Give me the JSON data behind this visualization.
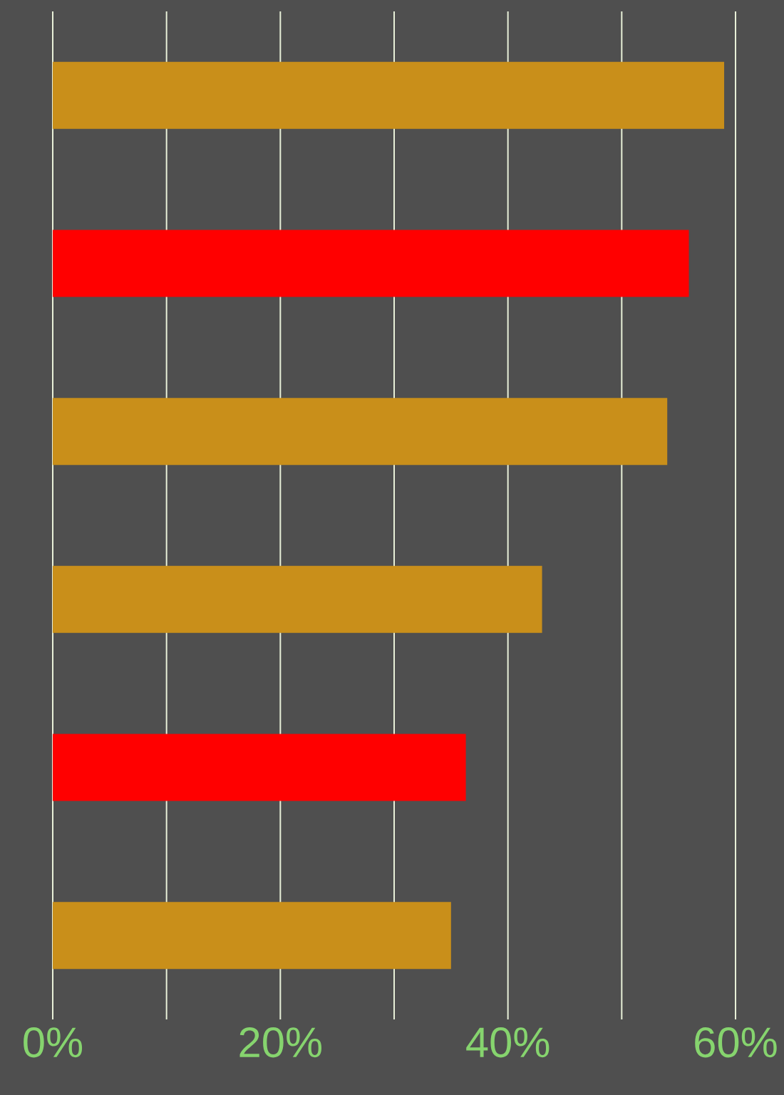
{
  "chart_data": {
    "type": "bar",
    "orientation": "horizontal",
    "categories": [
      null,
      null,
      null,
      null,
      null,
      null
    ],
    "values": [
      59,
      55.9,
      54,
      43,
      36.3,
      35
    ],
    "colors": [
      "#c98f1a",
      "#ff0000",
      "#c98f1a",
      "#c98f1a",
      "#ff0000",
      "#c98f1a"
    ],
    "xlim": [
      0,
      60
    ],
    "xticks": [
      {
        "value": 0,
        "label": "0%"
      },
      {
        "value": 10,
        "label": null
      },
      {
        "value": 20,
        "label": "20%"
      },
      {
        "value": 30,
        "label": null
      },
      {
        "value": 40,
        "label": "40%"
      },
      {
        "value": 50,
        "label": null
      },
      {
        "value": 60,
        "label": "60%"
      }
    ],
    "grid": "x"
  }
}
